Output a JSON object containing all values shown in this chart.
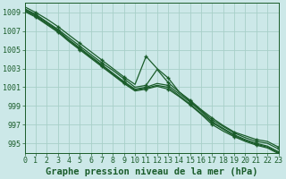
{
  "title": "Graphe pression niveau de la mer (hPa)",
  "bg_color": "#cce8e8",
  "grid_color": "#a8cfc8",
  "line_color": "#1a5c2a",
  "xlim": [
    0,
    23
  ],
  "ylim": [
    994.0,
    1010.0
  ],
  "yticks": [
    995,
    997,
    999,
    1001,
    1003,
    1005,
    1007,
    1009
  ],
  "xticks": [
    0,
    1,
    2,
    3,
    4,
    5,
    6,
    7,
    8,
    9,
    10,
    11,
    12,
    13,
    14,
    15,
    16,
    17,
    18,
    19,
    20,
    21,
    22,
    23
  ],
  "series": [
    [
      1009.6,
      1009.0,
      1008.3,
      1007.5,
      1006.6,
      1005.7,
      1004.8,
      1003.9,
      1003.0,
      1002.1,
      1001.3,
      1004.3,
      1003.0,
      1002.0,
      1000.5,
      999.6,
      998.6,
      997.7,
      996.9,
      996.2,
      995.8,
      995.4,
      995.2,
      994.6
    ],
    [
      1009.4,
      1008.8,
      1008.0,
      1007.2,
      1006.3,
      1005.4,
      1004.5,
      1003.6,
      1002.8,
      1001.9,
      1001.0,
      1001.2,
      1002.9,
      1001.5,
      1000.5,
      999.5,
      998.5,
      997.5,
      996.8,
      996.1,
      995.6,
      995.2,
      995.0,
      994.4
    ],
    [
      1009.3,
      1008.7,
      1007.9,
      1007.1,
      1006.1,
      1005.2,
      1004.3,
      1003.4,
      1002.5,
      1001.6,
      1000.8,
      1001.0,
      1001.4,
      1001.2,
      1000.3,
      999.4,
      998.4,
      997.3,
      996.6,
      995.9,
      995.4,
      995.0,
      994.7,
      994.1
    ],
    [
      1009.2,
      1008.6,
      1007.8,
      1007.0,
      1006.0,
      1005.1,
      1004.2,
      1003.3,
      1002.4,
      1001.5,
      1000.7,
      1000.9,
      1001.2,
      1001.0,
      1000.1,
      999.2,
      998.2,
      997.2,
      996.5,
      995.8,
      995.3,
      994.9,
      994.6,
      994.0
    ],
    [
      1009.1,
      1008.5,
      1007.7,
      1006.9,
      1005.9,
      1005.0,
      1004.1,
      1003.2,
      1002.3,
      1001.4,
      1000.6,
      1000.8,
      1001.1,
      1000.8,
      1000.0,
      999.1,
      998.1,
      997.0,
      996.3,
      995.7,
      995.2,
      994.8,
      994.5,
      993.9
    ]
  ],
  "marker_series": [
    0,
    2,
    4
  ],
  "marker_hours": [
    1,
    3,
    5,
    7,
    9,
    11,
    13,
    15,
    17,
    19,
    21,
    23
  ],
  "title_fontsize": 7.5,
  "tick_fontsize": 6.0
}
